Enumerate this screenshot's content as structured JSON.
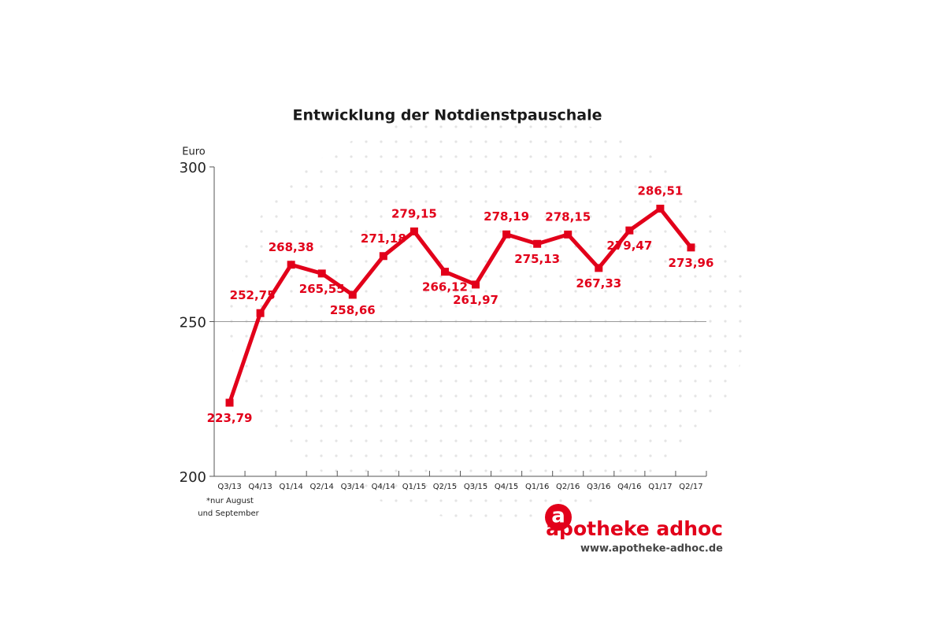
{
  "chart_data": {
    "type": "line",
    "title": "Entwicklung der Notdienstpauschale",
    "y_label": "Euro",
    "categories": [
      "Q3/13",
      "Q4/13",
      "Q1/14",
      "Q2/14",
      "Q3/14",
      "Q4/14",
      "Q1/15",
      "Q2/15",
      "Q3/15",
      "Q4/15",
      "Q1/16",
      "Q2/16",
      "Q3/16",
      "Q4/16",
      "Q1/17",
      "Q2/17"
    ],
    "series": [
      {
        "name": "Notdienstpauschale",
        "color": "#e2001a",
        "values": [
          223.79,
          252.75,
          268.38,
          265.55,
          258.66,
          271.18,
          279.15,
          266.12,
          261.97,
          278.19,
          275.13,
          278.15,
          267.33,
          279.47,
          286.51,
          273.96
        ],
        "value_labels": [
          "223,79",
          "252,75",
          "268,38",
          "265,55",
          "258,66",
          "271,18",
          "279,15",
          "266,12",
          "261,97",
          "278,19",
          "275,13",
          "278,15",
          "267,33",
          "279,47",
          "286,51",
          "273,96"
        ]
      }
    ],
    "ylim": [
      200,
      300
    ],
    "yticks": [
      200,
      250,
      300
    ],
    "grid": true,
    "footnote": [
      "*nur August",
      "und September"
    ],
    "brand": {
      "logo_letter": "a",
      "name": "apotheke adhoc",
      "url": "www.apotheke-adhoc.de"
    }
  }
}
